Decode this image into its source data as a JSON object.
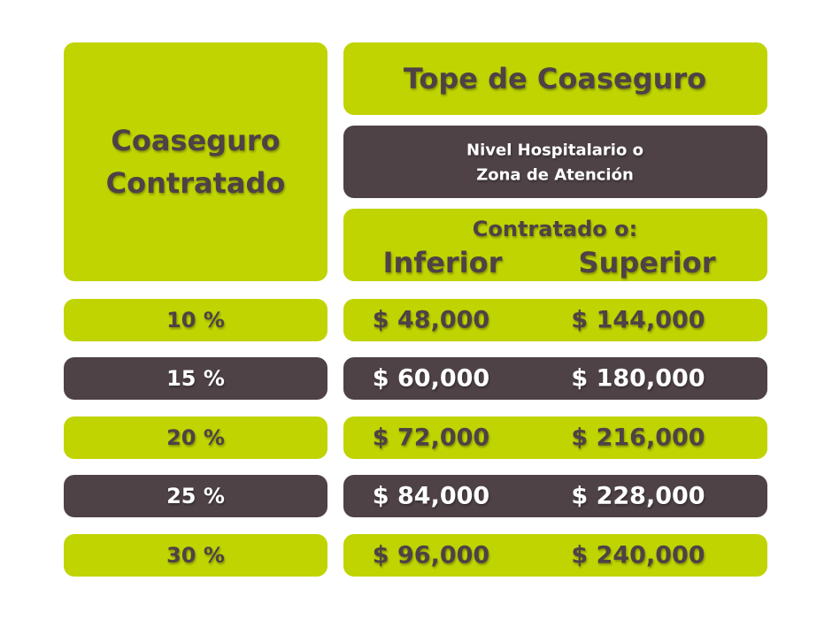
{
  "header": {
    "left_title": [
      "Coaseguro",
      "Contratado"
    ],
    "right_title": "Tope de Coaseguro",
    "subheader": [
      "Nivel Hospitalario o",
      "Zona de Atención"
    ],
    "column_group": "Contratado o:",
    "columns": [
      "Inferior",
      "Superior"
    ]
  },
  "table": {
    "rows": [
      [
        "10 %",
        "$ 48,000",
        "$ 144,000"
      ],
      [
        "15 %",
        "$ 60,000",
        "$ 180,000"
      ],
      [
        "20 %",
        "$ 72,000",
        "$ 216,000"
      ],
      [
        "25 %",
        "$ 84,000",
        "$ 228,000"
      ],
      [
        "30 %",
        "$ 96,000",
        "$ 240,000"
      ]
    ]
  }
}
